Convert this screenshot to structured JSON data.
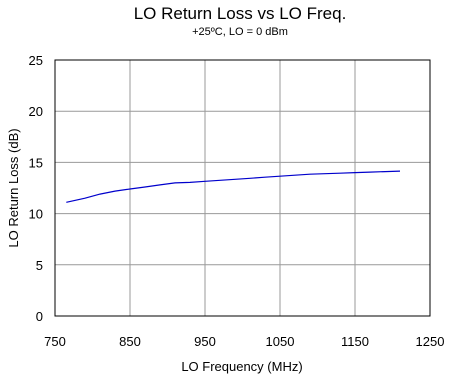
{
  "chart_data": {
    "type": "line",
    "title": "LO Return Loss vs LO Freq.",
    "subtitle": "+25ºC, LO = 0 dBm",
    "xlabel": "LO Frequency (MHz)",
    "ylabel": "LO Return Loss (dB)",
    "xlim": [
      750,
      1250
    ],
    "ylim": [
      0,
      25
    ],
    "xticks": [
      "750",
      "850",
      "950",
      "1050",
      "1150",
      "1250"
    ],
    "yticks": [
      "0",
      "5",
      "10",
      "15",
      "20",
      "25"
    ],
    "grid": true,
    "series": [
      {
        "color": "#0000cc",
        "x": [
          765,
          790,
          810,
          830,
          850,
          870,
          890,
          910,
          930,
          950,
          970,
          990,
          1010,
          1030,
          1050,
          1070,
          1090,
          1110,
          1130,
          1150,
          1170,
          1190,
          1210
        ],
        "y": [
          11.1,
          11.5,
          11.9,
          12.2,
          12.4,
          12.6,
          12.8,
          13.0,
          13.05,
          13.15,
          13.25,
          13.35,
          13.45,
          13.55,
          13.65,
          13.75,
          13.85,
          13.9,
          13.95,
          14.0,
          14.05,
          14.1,
          14.15
        ]
      }
    ]
  }
}
